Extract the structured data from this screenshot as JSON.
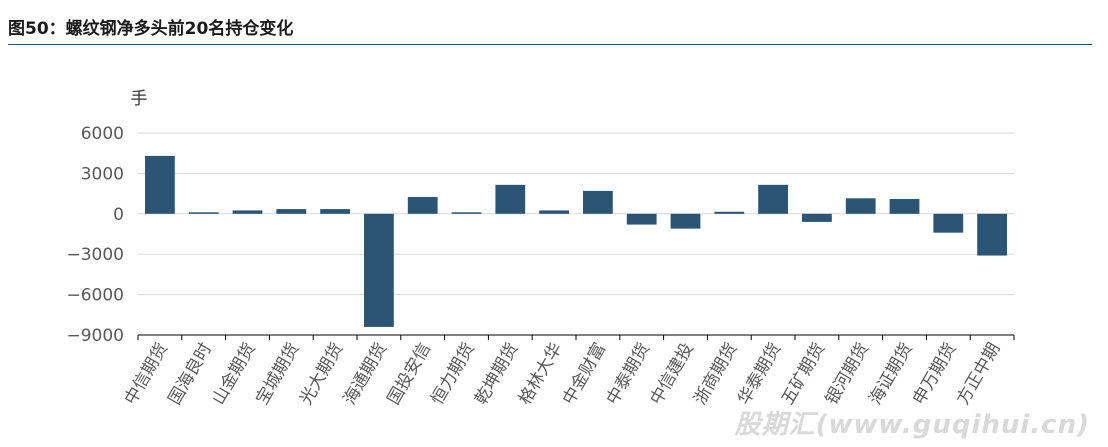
{
  "page": {
    "title": "图50：螺纹钢净多头前20名持仓变化",
    "watermark": "股期汇(www.guqihui.cn)"
  },
  "colors": {
    "bar": "#2b5475",
    "grid": "#d9d9d9",
    "axis": "#000000",
    "text": "#595959",
    "title_rule": "#1f4e6e"
  },
  "chart_data": {
    "type": "bar",
    "ylabel": "手",
    "ylim": [
      -9000,
      6000
    ],
    "yticks": [
      6000,
      3000,
      0,
      -3000,
      -6000,
      -9000
    ],
    "ytick_labels": [
      "6000",
      "3000",
      "0",
      "−3000",
      "−6000",
      "−9000"
    ],
    "grid": true,
    "categories": [
      "中信期货",
      "国海良时",
      "山金期货",
      "宝城期货",
      "光大期货",
      "海通期货",
      "国投安信",
      "恒力期货",
      "乾坤期货",
      "格林大华",
      "中金财富",
      "中泰期货",
      "中信建投",
      "浙商期货",
      "华泰期货",
      "五矿期货",
      "银河期货",
      "海证期货",
      "申万期货",
      "方正中期"
    ],
    "values": [
      4300,
      100,
      250,
      350,
      350,
      -8400,
      1250,
      50,
      2150,
      250,
      1700,
      -800,
      -1100,
      150,
      2150,
      -600,
      1150,
      1100,
      -1400,
      -3100
    ]
  }
}
